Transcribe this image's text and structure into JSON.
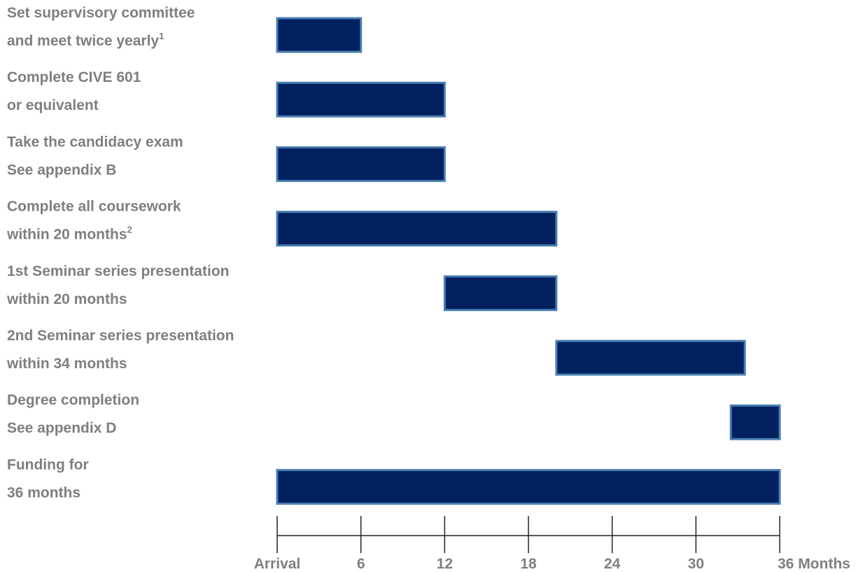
{
  "chart_data": {
    "type": "gantt",
    "title": "",
    "xlabel": "",
    "ylabel": "",
    "xlim": [
      0,
      36
    ],
    "x_ticks": [
      {
        "value": 0,
        "label": "Arrival"
      },
      {
        "value": 6,
        "label": "6"
      },
      {
        "value": 12,
        "label": "12"
      },
      {
        "value": 18,
        "label": "18"
      },
      {
        "value": 24,
        "label": "24"
      },
      {
        "value": 30,
        "label": "30"
      },
      {
        "value": 36,
        "label": "36 Months"
      }
    ],
    "grid": false,
    "bar_color": "#002060",
    "bar_border_color": "#4a7eb0",
    "label_color": "#7f7f7f",
    "axis_color": "#222222",
    "tasks": [
      {
        "line1": "Set supervisory committee",
        "line2": "and meet twice yearly",
        "sup": "1",
        "start": 0,
        "end": 6
      },
      {
        "line1": "Complete CIVE 601",
        "line2": "or equivalent",
        "sup": "",
        "start": 0,
        "end": 12
      },
      {
        "line1": "Take the candidacy exam",
        "line2": "See appendix B",
        "sup": "",
        "start": 0,
        "end": 12
      },
      {
        "line1": "Complete all coursework",
        "line2": "within 20 months",
        "sup": "2",
        "start": 0,
        "end": 20
      },
      {
        "line1": "1st Seminar series presentation",
        "line2": "within 20 months",
        "sup": "",
        "start": 12,
        "end": 20
      },
      {
        "line1": "2nd Seminar series presentation",
        "line2": "within 34 months",
        "sup": "",
        "start": 20,
        "end": 33.5
      },
      {
        "line1": "Degree completion",
        "line2": "See appendix D",
        "sup": "",
        "start": 32.5,
        "end": 36
      },
      {
        "line1": "Funding for",
        "line2": "36 months",
        "sup": "",
        "start": 0,
        "end": 36
      }
    ]
  }
}
